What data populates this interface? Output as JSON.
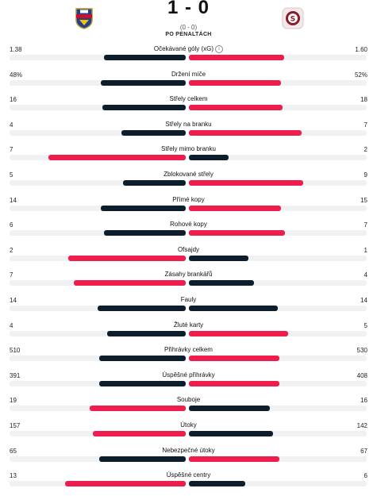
{
  "match": {
    "score": "1 - 0",
    "halftime": "(0 - 0)",
    "note": "PO PENALTÁCH"
  },
  "colors": {
    "dark": "#0e1d2c",
    "red": "#ee1d4d",
    "track": "#f0f1f3"
  },
  "stats": [
    {
      "label": "Očekávané góly (xG)",
      "home": "1.38",
      "away": "1.60",
      "home_share": 0.463,
      "away_share": 0.537,
      "home_winner": false,
      "info": true
    },
    {
      "label": "Držení míče",
      "home": "48%",
      "away": "52%",
      "home_share": 0.48,
      "away_share": 0.52,
      "home_winner": false
    },
    {
      "label": "Střely celkem",
      "home": "16",
      "away": "18",
      "home_share": 0.471,
      "away_share": 0.529,
      "home_winner": false
    },
    {
      "label": "Střely na branku",
      "home": "4",
      "away": "7",
      "home_share": 0.364,
      "away_share": 0.636,
      "home_winner": false
    },
    {
      "label": "Střely mimo branku",
      "home": "7",
      "away": "2",
      "home_share": 0.778,
      "away_share": 0.222,
      "home_winner": true
    },
    {
      "label": "Zblokované střely",
      "home": "5",
      "away": "9",
      "home_share": 0.357,
      "away_share": 0.643,
      "home_winner": false
    },
    {
      "label": "Přímé kopy",
      "home": "14",
      "away": "15",
      "home_share": 0.483,
      "away_share": 0.517,
      "home_winner": false
    },
    {
      "label": "Rohové kopy",
      "home": "6",
      "away": "7",
      "home_share": 0.462,
      "away_share": 0.538,
      "home_winner": false
    },
    {
      "label": "Ofsajdy",
      "home": "2",
      "away": "1",
      "home_share": 0.667,
      "away_share": 0.333,
      "home_winner": true
    },
    {
      "label": "Zásahy brankářů",
      "home": "7",
      "away": "4",
      "home_share": 0.636,
      "away_share": 0.364,
      "home_winner": true
    },
    {
      "label": "Fauly",
      "home": "14",
      "away": "14",
      "home_share": 0.5,
      "away_share": 0.5,
      "home_winner": false,
      "tie": true
    },
    {
      "label": "Žluté karty",
      "home": "4",
      "away": "5",
      "home_share": 0.444,
      "away_share": 0.556,
      "home_winner": false
    },
    {
      "label": "Přihrávky celkem",
      "home": "510",
      "away": "530",
      "home_share": 0.49,
      "away_share": 0.51,
      "home_winner": false
    },
    {
      "label": "Úspěšné přihrávky",
      "home": "391",
      "away": "408",
      "home_share": 0.489,
      "away_share": 0.511,
      "home_winner": false
    },
    {
      "label": "Souboje",
      "home": "19",
      "away": "16",
      "home_share": 0.543,
      "away_share": 0.457,
      "home_winner": true
    },
    {
      "label": "Útoky",
      "home": "157",
      "away": "142",
      "home_share": 0.525,
      "away_share": 0.475,
      "home_winner": true
    },
    {
      "label": "Nebezpečné útoky",
      "home": "65",
      "away": "67",
      "home_share": 0.492,
      "away_share": 0.508,
      "home_winner": false
    },
    {
      "label": "Úspěšné centry",
      "home": "13",
      "away": "6",
      "home_share": 0.684,
      "away_share": 0.316,
      "home_winner": true
    }
  ]
}
